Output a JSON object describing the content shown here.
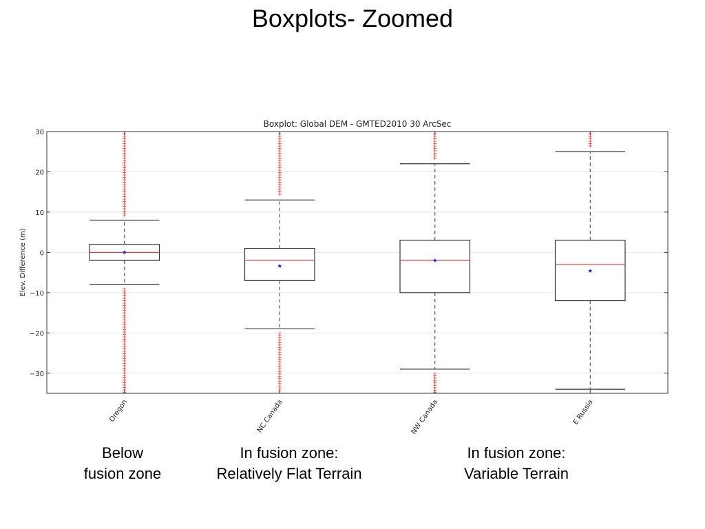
{
  "slide": {
    "title": "Boxplots- Zoomed",
    "captions": [
      {
        "line1": "Below",
        "line2": "fusion zone"
      },
      {
        "line1": "In fusion zone:",
        "line2": "Relatively Flat Terrain"
      },
      {
        "line1": "In fusion zone:",
        "line2": "Variable Terrain"
      }
    ]
  },
  "chart_data": {
    "type": "boxplot",
    "title": "Boxplot: Global DEM - GMTED2010 30 ArcSec",
    "xlabel": "",
    "ylabel": "Elev. Difference (m)",
    "ylim": [
      -35,
      30
    ],
    "yticks": [
      30,
      20,
      10,
      0,
      -10,
      -20,
      -30
    ],
    "ytick_labels": [
      "30",
      "20",
      "10",
      "0",
      "−10",
      "−20",
      "−30"
    ],
    "grid": true,
    "colors": {
      "median": "#e8333f",
      "mean": "#1e1ee0",
      "box": "#333333",
      "outlier": "#ff3030"
    },
    "categories": [
      "Oregon",
      "NC Canada",
      "NW Canada",
      "E Russia"
    ],
    "boxes": [
      {
        "category": "Oregon",
        "whisker_low": -8,
        "q1": -2,
        "median": 0,
        "q3": 2,
        "whisker_high": 8,
        "mean": 0,
        "outliers_low_range": [
          -35,
          -9
        ],
        "outliers_high_range": [
          9,
          30
        ]
      },
      {
        "category": "NC Canada",
        "whisker_low": -19,
        "q1": -7,
        "median": -2,
        "q3": 1,
        "whisker_high": 13,
        "mean": -3.4,
        "outliers_low_range": [
          -35,
          -20
        ],
        "outliers_high_range": [
          14,
          30
        ]
      },
      {
        "category": "NW Canada",
        "whisker_low": -29,
        "q1": -10,
        "median": -2,
        "q3": 3,
        "whisker_high": 22,
        "mean": -2,
        "outliers_low_range": [
          -35,
          -30
        ],
        "outliers_high_range": [
          23,
          30
        ]
      },
      {
        "category": "E Russia",
        "whisker_low": -34,
        "q1": -12,
        "median": -3,
        "q3": 3,
        "whisker_high": 25,
        "mean": -4.6,
        "outliers_low_range": [],
        "outliers_high_range": [
          26,
          30
        ]
      }
    ]
  }
}
